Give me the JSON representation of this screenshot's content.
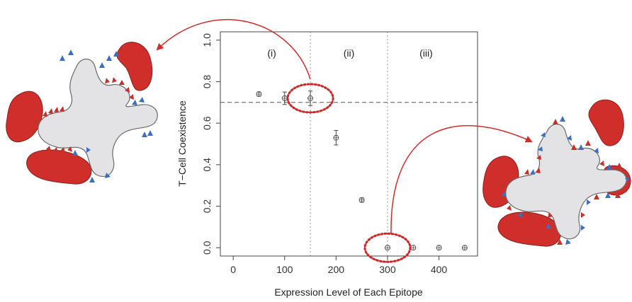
{
  "chart_data": {
    "type": "scatter",
    "xlabel": "Expression Level of Each Epitope",
    "ylabel": "T−Cell Coexistence",
    "xlim": [
      -25,
      475
    ],
    "ylim": [
      -0.04,
      1.04
    ],
    "x_ticks": [
      {
        "value": 0,
        "label": "0"
      },
      {
        "value": 100,
        "label": "100"
      },
      {
        "value": 200,
        "label": "200"
      },
      {
        "value": 300,
        "label": "300"
      },
      {
        "value": 400,
        "label": "400"
      }
    ],
    "y_ticks": [
      {
        "value": 0.0,
        "label": "0.0"
      },
      {
        "value": 0.2,
        "label": "0.2"
      },
      {
        "value": 0.4,
        "label": "0.4"
      },
      {
        "value": 0.6,
        "label": "0.6"
      },
      {
        "value": 0.8,
        "label": "0.8"
      },
      {
        "value": 1.0,
        "label": "1.0"
      }
    ],
    "points": [
      {
        "x": 50,
        "y": 0.74,
        "err": 0.01
      },
      {
        "x": 100,
        "y": 0.72,
        "err": 0.03
      },
      {
        "x": 150,
        "y": 0.72,
        "err": 0.035
      },
      {
        "x": 200,
        "y": 0.53,
        "err": 0.035
      },
      {
        "x": 250,
        "y": 0.23,
        "err": 0.01
      },
      {
        "x": 300,
        "y": 0.0,
        "err": 0.0
      },
      {
        "x": 350,
        "y": 0.0,
        "err": 0.0
      },
      {
        "x": 400,
        "y": 0.0,
        "err": 0.0
      },
      {
        "x": 450,
        "y": 0.0,
        "err": 0.0
      }
    ],
    "hline": 0.7,
    "vlines": [
      150,
      300
    ],
    "regions": [
      {
        "label": "(i)",
        "x": 75,
        "y": 0.92
      },
      {
        "label": "(ii)",
        "x": 225,
        "y": 0.92
      },
      {
        "label": "(iii)",
        "x": 375,
        "y": 0.92
      }
    ],
    "highlights": [
      {
        "x": 150,
        "y": 0.72
      },
      {
        "x": 300,
        "y": 0.0
      }
    ],
    "grid": false,
    "legend": "none"
  },
  "colors": {
    "cell_body": "#e3e3e5",
    "cell_outline": "#6a6a6a",
    "tcell": "#cf2e2b",
    "epitope_red": "#c4302b",
    "epitope_blue": "#3a6fc4",
    "highlight": "#cf2626",
    "points": "#555555"
  }
}
